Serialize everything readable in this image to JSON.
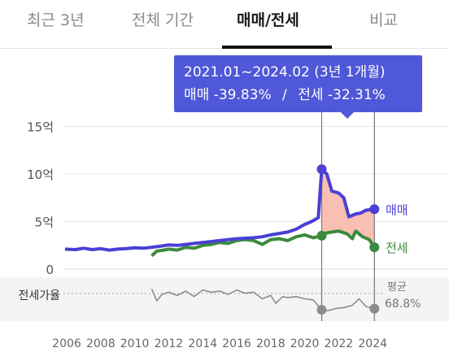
{
  "tabs": [
    {
      "label": "최근 3년",
      "active": false
    },
    {
      "label": "전체 기간",
      "active": false
    },
    {
      "label": "매매/전세",
      "active": true
    },
    {
      "label": "비교",
      "active": false
    }
  ],
  "tooltip": {
    "range": "2021.01~2024.02 (3년 1개월)",
    "sale_label": "매매 -39.83%",
    "separator": "/",
    "jeonse_label": "전세 -32.31%"
  },
  "colors": {
    "sale": "#4a3fd6",
    "jeonse": "#3b8a3e",
    "ratio": "#8c8c8c",
    "drop_fill": "#f7b4a4",
    "tooltip_bg": "#4f58d8"
  },
  "chart_data": {
    "type": "line",
    "x_unit": "year",
    "xlim": [
      2005.5,
      2025
    ],
    "x_ticks": [
      "2006",
      "2008",
      "2010",
      "2012",
      "2014",
      "2016",
      "2018",
      "2020",
      "2022",
      "2024"
    ],
    "y_ticks": [
      "15억",
      "10억",
      "5억",
      "0"
    ],
    "ylim": [
      0,
      15
    ],
    "ratio_label": "전세가율",
    "ratio_avg_label": "평균",
    "ratio_avg_value": "68.8%",
    "highlight_range": [
      2021.0,
      2024.1
    ],
    "series": [
      {
        "name": "매매",
        "points": [
          [
            2005.9,
            2.1
          ],
          [
            2006.5,
            2.05
          ],
          [
            2007.0,
            2.2
          ],
          [
            2007.5,
            2.05
          ],
          [
            2008.0,
            2.15
          ],
          [
            2008.5,
            2.0
          ],
          [
            2009.0,
            2.1
          ],
          [
            2009.5,
            2.15
          ],
          [
            2010.0,
            2.25
          ],
          [
            2010.5,
            2.2
          ],
          [
            2011.0,
            2.3
          ],
          [
            2011.5,
            2.4
          ],
          [
            2012.0,
            2.55
          ],
          [
            2012.5,
            2.5
          ],
          [
            2013.0,
            2.6
          ],
          [
            2013.5,
            2.7
          ],
          [
            2014.0,
            2.8
          ],
          [
            2014.5,
            2.9
          ],
          [
            2015.0,
            3.0
          ],
          [
            2015.5,
            3.1
          ],
          [
            2016.0,
            3.2
          ],
          [
            2016.5,
            3.25
          ],
          [
            2017.0,
            3.3
          ],
          [
            2017.5,
            3.4
          ],
          [
            2018.0,
            3.6
          ],
          [
            2018.5,
            3.75
          ],
          [
            2019.0,
            3.9
          ],
          [
            2019.5,
            4.2
          ],
          [
            2020.0,
            4.7
          ],
          [
            2020.4,
            5.0
          ],
          [
            2020.8,
            5.4
          ],
          [
            2021.0,
            10.5
          ],
          [
            2021.3,
            10.0
          ],
          [
            2021.6,
            8.2
          ],
          [
            2022.0,
            8.0
          ],
          [
            2022.3,
            7.5
          ],
          [
            2022.6,
            5.5
          ],
          [
            2023.0,
            5.8
          ],
          [
            2023.3,
            5.9
          ],
          [
            2023.6,
            6.2
          ],
          [
            2024.1,
            6.3
          ]
        ]
      },
      {
        "name": "전세",
        "points": [
          [
            2011.0,
            1.4
          ],
          [
            2011.3,
            1.9
          ],
          [
            2011.7,
            2.0
          ],
          [
            2012.0,
            2.1
          ],
          [
            2012.5,
            2.0
          ],
          [
            2013.0,
            2.3
          ],
          [
            2013.5,
            2.2
          ],
          [
            2014.0,
            2.5
          ],
          [
            2014.5,
            2.6
          ],
          [
            2015.0,
            2.8
          ],
          [
            2015.5,
            2.7
          ],
          [
            2016.0,
            3.0
          ],
          [
            2016.5,
            3.1
          ],
          [
            2017.0,
            3.0
          ],
          [
            2017.5,
            2.6
          ],
          [
            2018.0,
            3.1
          ],
          [
            2018.5,
            3.2
          ],
          [
            2019.0,
            3.0
          ],
          [
            2019.5,
            3.4
          ],
          [
            2020.0,
            3.6
          ],
          [
            2020.5,
            3.3
          ],
          [
            2021.0,
            3.5
          ],
          [
            2021.3,
            3.8
          ],
          [
            2021.6,
            3.9
          ],
          [
            2022.0,
            4.0
          ],
          [
            2022.5,
            3.7
          ],
          [
            2022.8,
            3.2
          ],
          [
            2023.0,
            4.0
          ],
          [
            2023.4,
            3.4
          ],
          [
            2023.8,
            3.1
          ],
          [
            2024.1,
            2.3
          ]
        ]
      },
      {
        "name": "전세가율",
        "values_unit": "%",
        "points": [
          [
            2011.0,
            73
          ],
          [
            2011.3,
            62
          ],
          [
            2011.6,
            68
          ],
          [
            2012.0,
            70
          ],
          [
            2012.5,
            67
          ],
          [
            2013.0,
            71
          ],
          [
            2013.5,
            66
          ],
          [
            2014.0,
            72
          ],
          [
            2014.5,
            70
          ],
          [
            2015.0,
            71
          ],
          [
            2015.5,
            68
          ],
          [
            2016.0,
            72
          ],
          [
            2016.5,
            69
          ],
          [
            2017.0,
            70
          ],
          [
            2017.5,
            64
          ],
          [
            2018.0,
            67
          ],
          [
            2018.3,
            60
          ],
          [
            2018.7,
            66
          ],
          [
            2019.0,
            65
          ],
          [
            2019.5,
            66
          ],
          [
            2020.0,
            64
          ],
          [
            2020.5,
            63
          ],
          [
            2021.0,
            54
          ],
          [
            2021.3,
            53
          ],
          [
            2021.8,
            55
          ],
          [
            2022.3,
            56
          ],
          [
            2022.8,
            58
          ],
          [
            2023.2,
            64
          ],
          [
            2023.6,
            57
          ],
          [
            2024.1,
            55
          ]
        ]
      }
    ]
  }
}
